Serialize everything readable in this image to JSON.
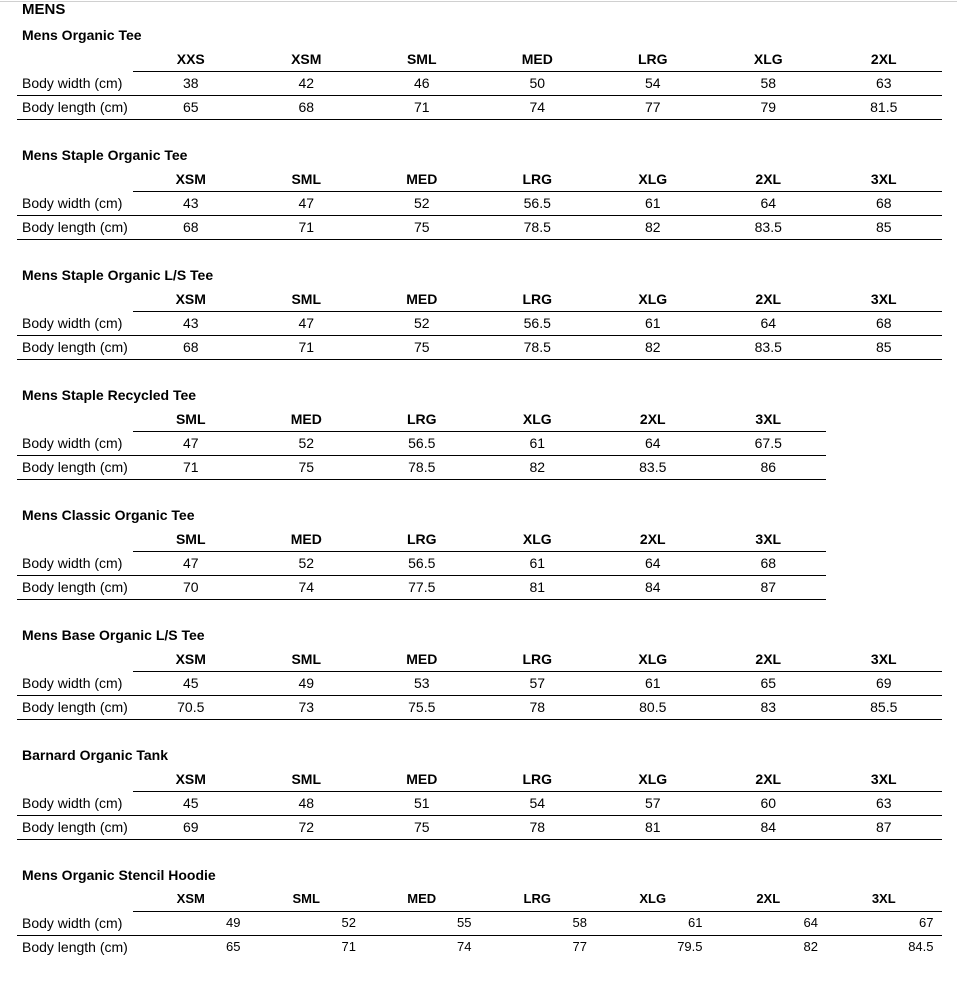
{
  "heading": "MENS",
  "row_labels": {
    "width": "Body width (cm)",
    "length": "Body length (cm)"
  },
  "tables": [
    {
      "title": "Mens Organic Tee",
      "sizes": [
        "XXS",
        "XSM",
        "SML",
        "MED",
        "LRG",
        "XLG",
        "2XL"
      ],
      "width": [
        "38",
        "42",
        "46",
        "50",
        "54",
        "58",
        "63"
      ],
      "length": [
        "65",
        "68",
        "71",
        "74",
        "77",
        "79",
        "81.5"
      ]
    },
    {
      "title": "Mens Staple Organic Tee",
      "sizes": [
        "XSM",
        "SML",
        "MED",
        "LRG",
        "XLG",
        "2XL",
        "3XL"
      ],
      "width": [
        "43",
        "47",
        "52",
        "56.5",
        "61",
        "64",
        "68"
      ],
      "length": [
        "68",
        "71",
        "75",
        "78.5",
        "82",
        "83.5",
        "85"
      ]
    },
    {
      "title": "Mens Staple Organic L/S Tee",
      "sizes": [
        "XSM",
        "SML",
        "MED",
        "LRG",
        "XLG",
        "2XL",
        "3XL"
      ],
      "width": [
        "43",
        "47",
        "52",
        "56.5",
        "61",
        "64",
        "68"
      ],
      "length": [
        "68",
        "71",
        "75",
        "78.5",
        "82",
        "83.5",
        "85"
      ]
    },
    {
      "title": "Mens Staple Recycled Tee",
      "sizes": [
        "SML",
        "MED",
        "LRG",
        "XLG",
        "2XL",
        "3XL"
      ],
      "width": [
        "47",
        "52",
        "56.5",
        "61",
        "64",
        "67.5"
      ],
      "length": [
        "71",
        "75",
        "78.5",
        "82",
        "83.5",
        "86"
      ]
    },
    {
      "title": "Mens Classic Organic Tee",
      "sizes": [
        "SML",
        "MED",
        "LRG",
        "XLG",
        "2XL",
        "3XL"
      ],
      "width": [
        "47",
        "52",
        "56.5",
        "61",
        "64",
        "68"
      ],
      "length": [
        "70",
        "74",
        "77.5",
        "81",
        "84",
        "87"
      ]
    },
    {
      "title": "Mens Base Organic L/S Tee",
      "sizes": [
        "XSM",
        "SML",
        "MED",
        "LRG",
        "XLG",
        "2XL",
        "3XL"
      ],
      "width": [
        "45",
        "49",
        "53",
        "57",
        "61",
        "65",
        "69"
      ],
      "length": [
        "70.5",
        "73",
        "75.5",
        "78",
        "80.5",
        "83",
        "85.5"
      ]
    },
    {
      "title": "Barnard Organic Tank",
      "sizes": [
        "XSM",
        "SML",
        "MED",
        "LRG",
        "XLG",
        "2XL",
        "3XL"
      ],
      "width": [
        "45",
        "48",
        "51",
        "54",
        "57",
        "60",
        "63"
      ],
      "length": [
        "69",
        "72",
        "75",
        "78",
        "81",
        "84",
        "87"
      ]
    },
    {
      "title": "Mens Organic Stencil Hoodie",
      "sizes": [
        "XSM",
        "SML",
        "MED",
        "LRG",
        "XLG",
        "2XL",
        "3XL"
      ],
      "width": [
        "49",
        "52",
        "55",
        "58",
        "61",
        "64",
        "67"
      ],
      "length": [
        "65",
        "71",
        "74",
        "77",
        "79.5",
        "82",
        "84.5"
      ],
      "right_aligned": true
    }
  ]
}
